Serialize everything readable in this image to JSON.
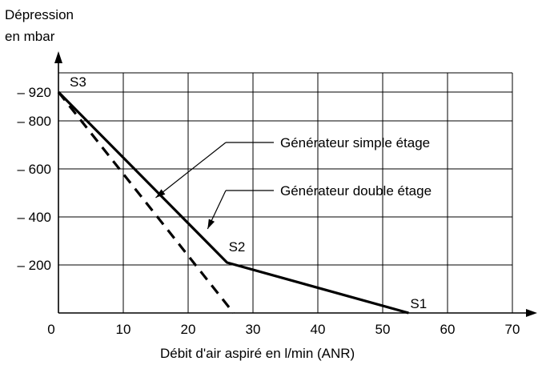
{
  "chart_data": {
    "type": "line",
    "ylabel_line1": "Dépression",
    "ylabel_line2": "en mbar",
    "xlabel": "Débit d'air aspiré en l/min (ANR)",
    "xlim": [
      0,
      70
    ],
    "ylim": [
      0,
      -1000
    ],
    "x_ticks": [
      0,
      10,
      20,
      30,
      40,
      50,
      60,
      70
    ],
    "x_tick_labels": [
      "0",
      "10",
      "20",
      "30",
      "40",
      "50",
      "60",
      "70"
    ],
    "y_ticks": [
      -920,
      -800,
      -600,
      -400,
      -200
    ],
    "y_tick_labels": [
      "– 920",
      "– 800",
      "– 600",
      "– 400",
      "– 200"
    ],
    "grid": true,
    "series": [
      {
        "name": "Générateur double étage",
        "style": "solid",
        "points": [
          [
            0,
            -920
          ],
          [
            26,
            -210
          ],
          [
            54,
            0
          ]
        ]
      },
      {
        "name": "Générateur simple étage",
        "style": "dashed",
        "points": [
          [
            0,
            -920
          ],
          [
            27,
            0
          ]
        ]
      }
    ],
    "point_labels": [
      {
        "text": "S3",
        "x": 0,
        "y": -920
      },
      {
        "text": "S2",
        "x": 26,
        "y": -210
      },
      {
        "text": "S1",
        "x": 54,
        "y": 0
      }
    ],
    "annotations": [
      {
        "text": "Générateur simple étage",
        "target": [
          15,
          -480
        ]
      },
      {
        "text": "Générateur double étage",
        "target": [
          23,
          -350
        ]
      }
    ],
    "colors": {
      "line": "#000000",
      "grid": "#000000",
      "background": "#ffffff"
    }
  }
}
